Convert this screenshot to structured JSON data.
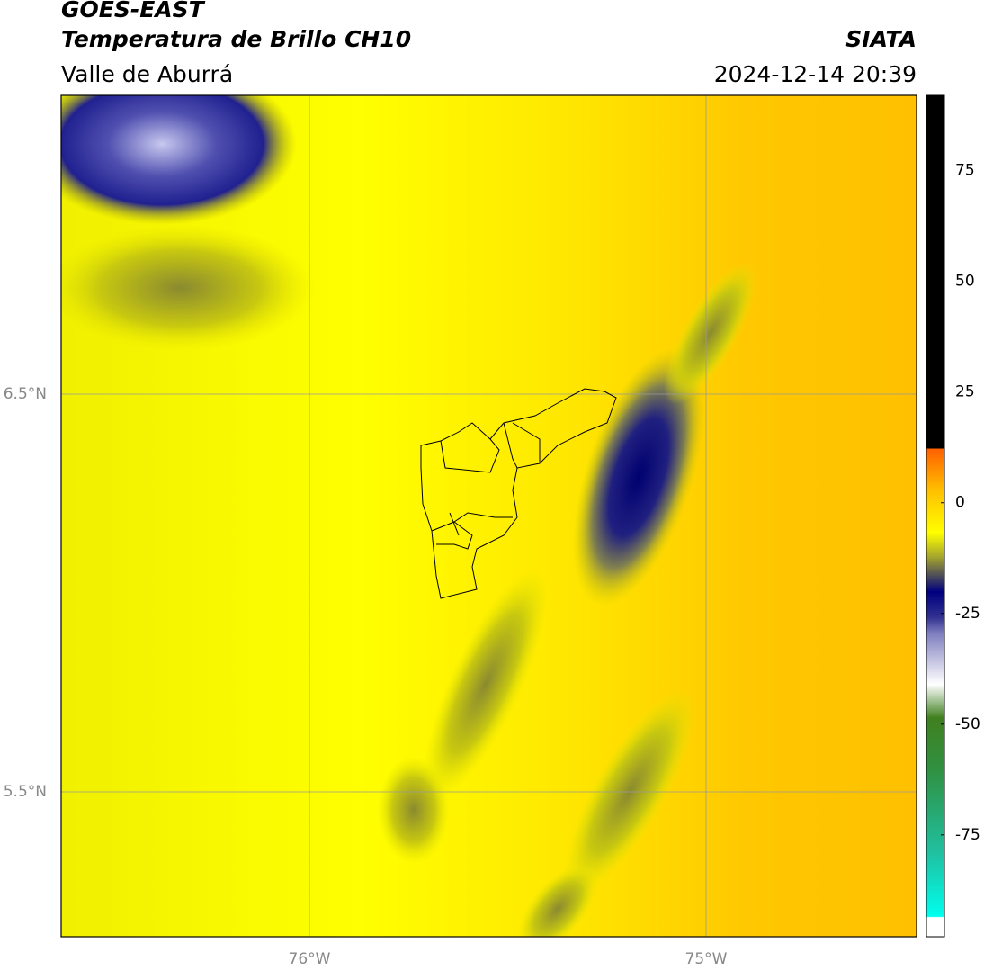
{
  "header": {
    "title": "GOES-EAST",
    "subtitle": "Temperatura de Brillo CH10",
    "region": "Valle de Aburrá",
    "source": "SIATA",
    "timestamp": "2024-12-14 20:39"
  },
  "map": {
    "lat_labels": [
      "6.5°N",
      "5.5°N"
    ],
    "lon_labels": [
      "76°W",
      "75°W"
    ]
  },
  "colorbar": {
    "vlim": [
      -98,
      92
    ],
    "ticks": [
      75,
      50,
      25,
      0,
      -25,
      -50,
      -75
    ]
  }
}
